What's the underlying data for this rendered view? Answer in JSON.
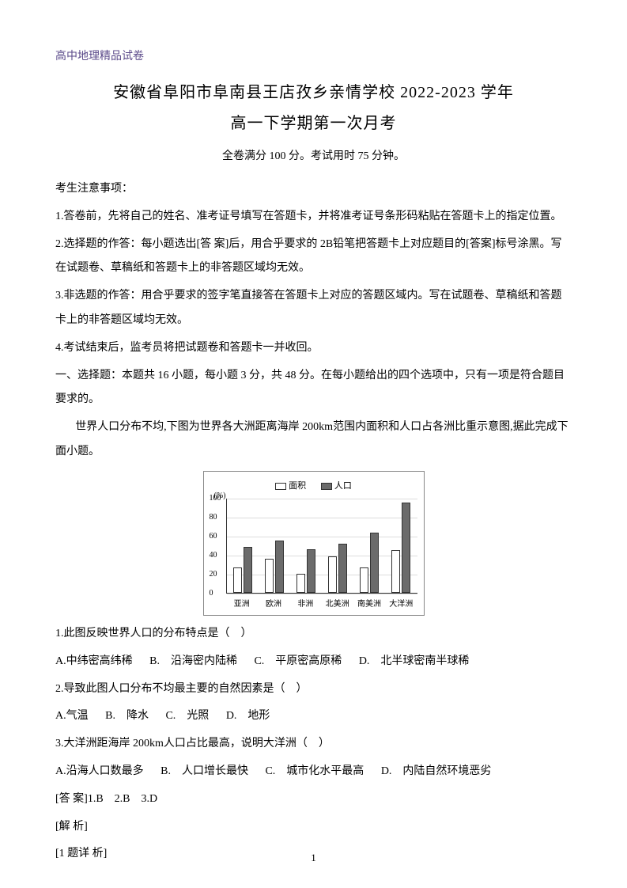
{
  "header_label": "高中地理精品试卷",
  "title_line1": "安徽省阜阳市阜南县王店孜乡亲情学校 2022-2023 学年",
  "title_line2": "高一下学期第一次月考",
  "exam_info": "全卷满分 100 分。考试用时 75 分钟。",
  "notice_header": "考生注意事项：",
  "notice1": "1.答卷前，先将自己的姓名、准考证号填写在答题卡，并将准考证号条形码粘贴在答题卡上的指定位置。",
  "notice2": "2.选择题的作答：每小题选出[答 案]后，用合乎要求的 2B铅笔把答题卡上对应题目的[答案]标号涂黑。写在试题卷、草稿纸和答题卡上的非答题区域均无效。",
  "notice3": "3.非选题的作答：用合乎要求的签字笔直接答在答题卡上对应的答题区域内。写在试题卷、草稿纸和答题卡上的非答题区域均无效。",
  "notice4": "4.考试结束后，监考员将把试题卷和答题卡一并收回。",
  "section1": "一、选择题：本题共 16 小题，每小题 3 分，共 48 分。在每小题给出的四个选项中，只有一项是符合题目要求的。",
  "intro1": "世界人口分布不均,下图为世界各大洲距离海岸 200km范围内面积和人口占各洲比重示意图,据此完成下面小题。",
  "chart": {
    "y_unit": "(%)",
    "y_ticks": [
      0,
      20,
      40,
      60,
      80,
      100
    ],
    "legend": {
      "area": "面积",
      "pop": "人口"
    },
    "categories": [
      "亚洲",
      "欧洲",
      "非洲",
      "北美洲",
      "南美洲",
      "大洋洲"
    ],
    "area_values": [
      27,
      36,
      20,
      38,
      27,
      45
    ],
    "pop_values": [
      48,
      55,
      46,
      52,
      63,
      95
    ],
    "colors": {
      "area": "#ffffff",
      "pop": "#6b6b6b",
      "border": "#333333",
      "grid": "#dddddd"
    },
    "max": 100
  },
  "q1": "1.此图反映世界人口的分布特点是（　）",
  "q1_opts": {
    "a": "A.中纬密高纬稀",
    "b": "B.　沿海密内陆稀",
    "c": "C.　平原密高原稀",
    "d": "D.　北半球密南半球稀"
  },
  "q2": "2.导致此图人口分布不均最主要的自然因素是（　）",
  "q2_opts": {
    "a": "A.气温",
    "b": "B.　降水",
    "c": "C.　光照",
    "d": "D.　地形"
  },
  "q3": "3.大洋洲距海岸 200km人口占比最高，说明大洋洲（　）",
  "q3_opts": {
    "a": "A.沿海人口数最多",
    "b": "B.　人口增长最快",
    "c": "C.　城市化水平最高",
    "d": "D.　内陆自然环境恶劣"
  },
  "answer_line": "[答 案]1.B　2.B　3.D",
  "analysis_label": "[解 析]",
  "q1_detail_label": "[1 题详 析]",
  "page_number": "1"
}
